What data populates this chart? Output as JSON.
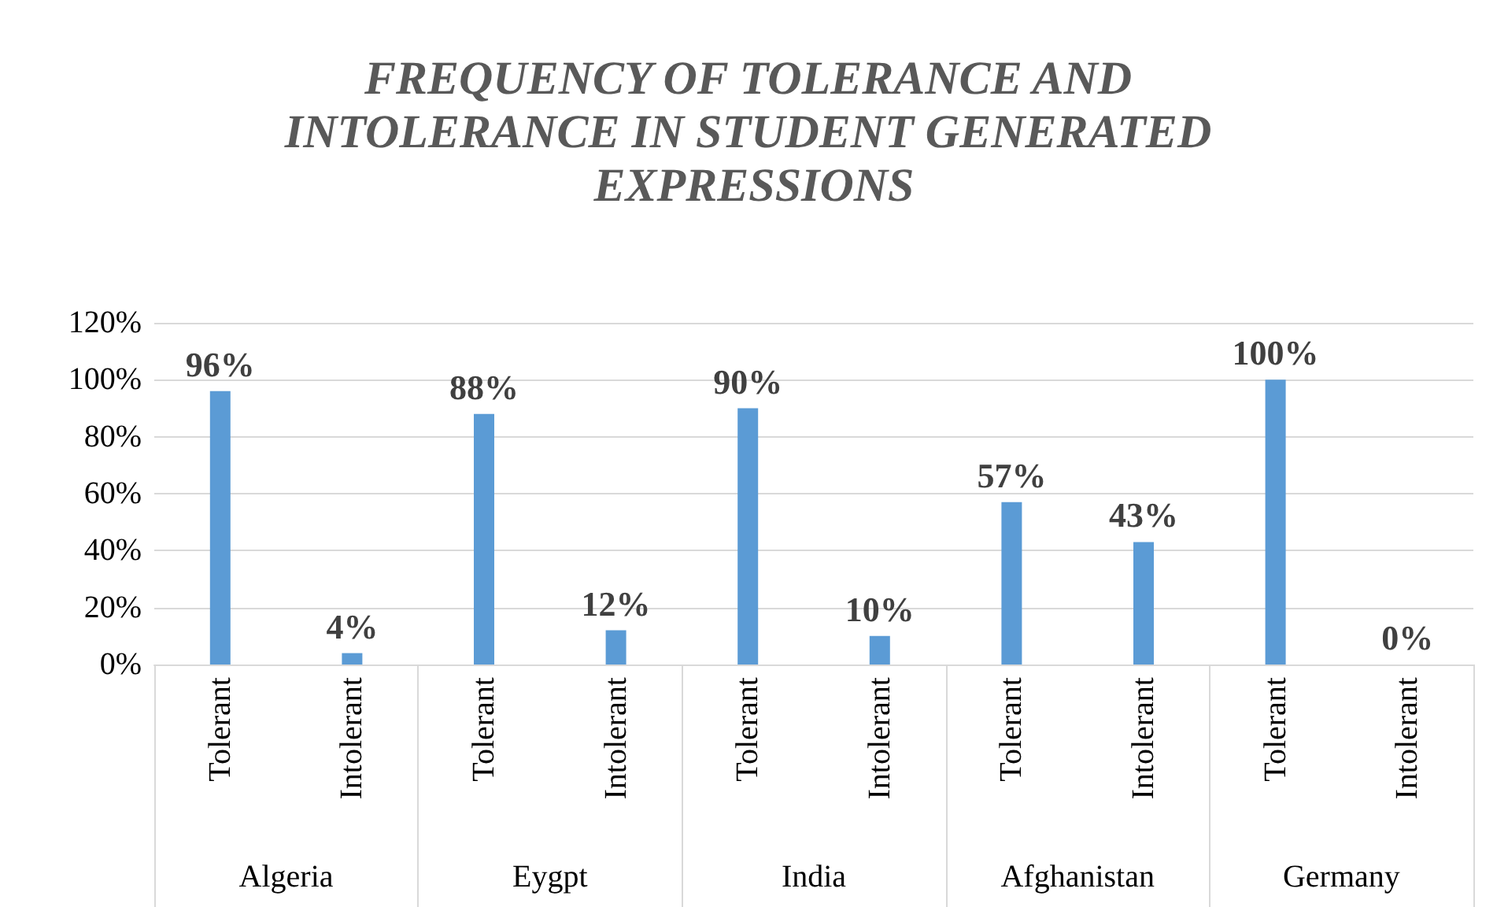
{
  "chart_data": {
    "type": "bar",
    "title": "FREQUENCY OF TOLERANCE AND INTOLERANCE IN STUDENT GENERATED EXPRESSIONS",
    "categories": [
      "Tolerant",
      "Intolerant",
      "Tolerant",
      "Intolerant",
      "Tolerant",
      "Intolerant",
      "Tolerant",
      "Intolerant",
      "Tolerant",
      "Intolerant"
    ],
    "values": [
      96,
      4,
      88,
      12,
      90,
      10,
      57,
      43,
      100,
      0
    ],
    "value_labels": [
      "96%",
      "4%",
      "88%",
      "12%",
      "90%",
      "10%",
      "57%",
      "43%",
      "100%",
      "0%"
    ],
    "color": "#5b9bd5",
    "ylim": [
      0,
      120
    ],
    "yticks": [
      {
        "value": 0,
        "label": "0%"
      },
      {
        "value": 20,
        "label": "20%"
      },
      {
        "value": 40,
        "label": "40%"
      },
      {
        "value": 60,
        "label": "60%"
      },
      {
        "value": 80,
        "label": "80%"
      },
      {
        "value": 100,
        "label": "100%"
      },
      {
        "value": 120,
        "label": "120%"
      }
    ],
    "grid": "y",
    "annotations": [
      "Algeria",
      "Eygpt",
      "India",
      "Afghanistan",
      "Germany"
    ]
  }
}
